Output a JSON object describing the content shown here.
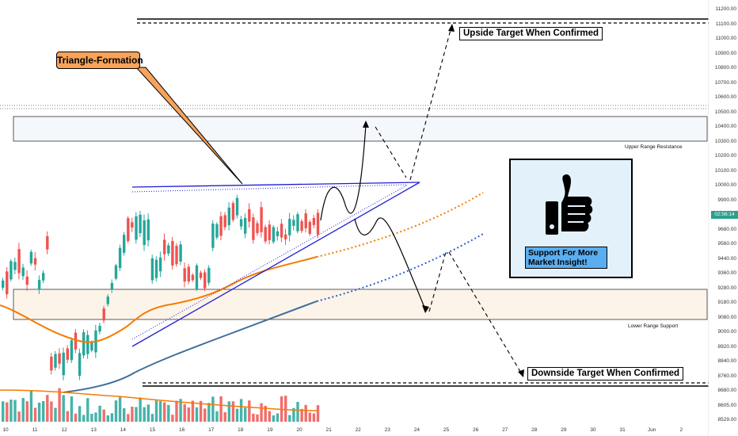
{
  "annotations": {
    "triangle": "Triangle-Formation",
    "upside": "Upside Target When Confirmed",
    "downside": "Downside Target When Confirmed",
    "upper_zone": "Upper Range Resistance",
    "lower_zone": "Lower Range Support",
    "support": "Support For More Market Insight!"
  },
  "price_axis": {
    "ticks": [
      "11200.00",
      "11100.00",
      "11000.00",
      "10900.00",
      "10800.00",
      "10700.00",
      "10600.00",
      "10500.00",
      "10400.00",
      "10300.00",
      "10200.00",
      "10100.00",
      "10000.00",
      "9900.00",
      "9800.00",
      "9680.00",
      "9560.00",
      "9440.00",
      "9360.00",
      "9280.00",
      "9180.00",
      "9080.00",
      "9000.00",
      "8920.00",
      "8840.00",
      "8760.00",
      "8680.00",
      "8605.00",
      "8529.00"
    ],
    "current_label": "02:56:14"
  },
  "time_axis": {
    "ticks": [
      "10",
      "11",
      "12",
      "13",
      "14",
      "15",
      "16",
      "17",
      "18",
      "19",
      "20",
      "21",
      "22",
      "23",
      "24",
      "25",
      "26",
      "27",
      "28",
      "29",
      "30",
      "31",
      "Jun",
      "2"
    ]
  },
  "colors": {
    "up": "#26a69a",
    "down": "#ef5350",
    "ema_fast": "#f57c00",
    "ema_slow": "#3f6f9a",
    "trend": "#1f1fd6",
    "label_orange": "#f7a35a",
    "support_blue": "#5aaef0"
  },
  "icons": {
    "thumb": "thumbs-up-icon"
  }
}
